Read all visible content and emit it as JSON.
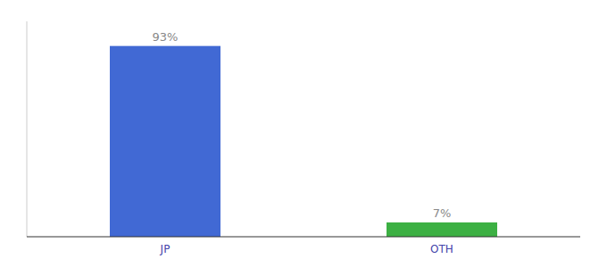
{
  "chart_data": {
    "type": "bar",
    "categories": [
      "JP",
      "OTH"
    ],
    "values": [
      93,
      7
    ],
    "value_labels": [
      "93%",
      "7%"
    ],
    "colors": [
      "#4169d4",
      "#3cb043"
    ],
    "ylim": [
      0,
      105
    ],
    "data_labels": true,
    "tick_labels": "x",
    "grid": false
  }
}
